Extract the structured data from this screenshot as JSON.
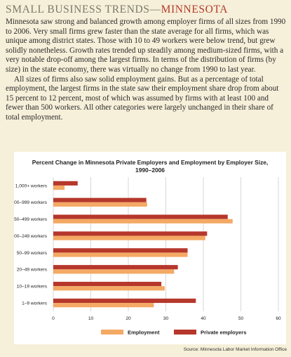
{
  "header": {
    "title_part1": "SMALL BUSINESS TRENDS—",
    "title_part2": "MINNESOTA"
  },
  "article": {
    "paragraphs": [
      "Minnesota saw strong and balanced growth among employer firms of all sizes from 1990 to 2006. Very small firms grew faster than the state average for all firms, which was unique among district states. Those with 10 to 49 workers were below trend, but grew solidly nonetheless. Growth rates trended up steadily among medium-sized firms, with a very notable drop-off among the largest firms. In terms of the distribution of firms (by size) in the state economy, there was virtually no change from 1990 to last year.",
      "All sizes of firms also saw solid employment gains. But as a percentage of total employment, the largest firms in the state saw their employment share drop from about 15 percent to 12 percent, most of which was assumed by firms with at least 100 and fewer than 500 workers. All other categories were largely unchanged in their share of total employment."
    ]
  },
  "colors": {
    "employment": "#f4a964",
    "private_employers": "#b6372b",
    "background": "#f6efd9"
  },
  "chart_data": {
    "type": "bar",
    "orientation": "horizontal",
    "title_line1": "Percent Change in Minnesota Private Employers and Employment by Employer Size,",
    "title_line2": "1990–2006",
    "categories": [
      "1,000+ workers",
      "500–999 workers",
      "250–499 workers",
      "100–249 workers",
      "50–99 workers",
      "20–49 workers",
      "10–19 workers",
      "1–9 workers"
    ],
    "series": [
      {
        "name": "Private employers",
        "values": [
          6.5,
          24.8,
          46.5,
          41.0,
          35.8,
          33.2,
          28.8,
          38.0
        ]
      },
      {
        "name": "Employment",
        "values": [
          3.0,
          25.0,
          47.8,
          40.5,
          35.8,
          32.2,
          29.7,
          26.8
        ]
      }
    ],
    "xticks": [
      "0",
      "10",
      "20",
      "30",
      "40",
      "50",
      "60"
    ],
    "xlim": [
      0,
      60
    ],
    "grid": true,
    "legend_position": "bottom"
  },
  "footer": {
    "source": "Source: Minnesota Labor Market Information Office"
  }
}
